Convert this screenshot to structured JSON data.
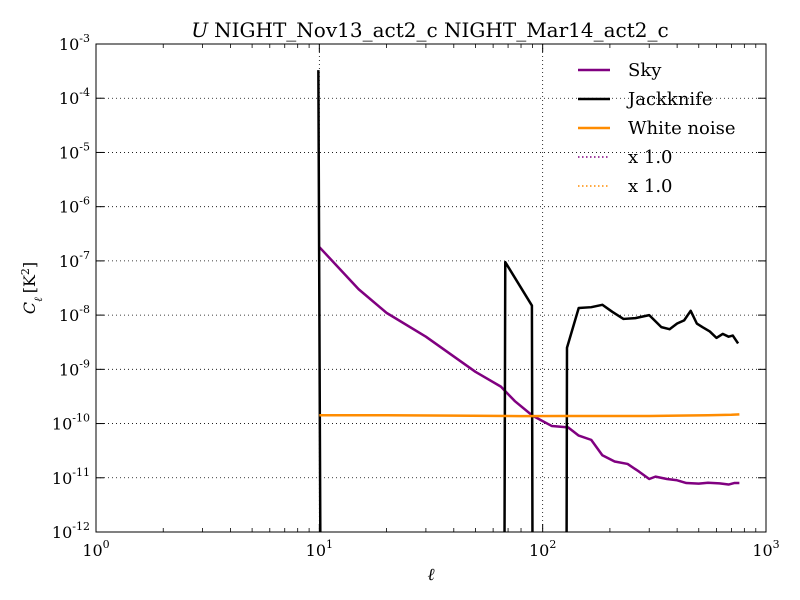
{
  "chart_data": {
    "type": "line",
    "title_symbol": "U",
    "title_text": "NIGHT_Nov13_act2_c NIGHT_Mar14_act2_c",
    "xlabel": "ℓ",
    "ylabel_main": "C",
    "ylabel_sub": "ℓ",
    "ylabel_unit_open": "[K",
    "ylabel_unit_sup": "2",
    "ylabel_unit_close": "]",
    "xscale": "log",
    "yscale": "log",
    "xlim": [
      1,
      1000
    ],
    "ylim": [
      1e-12,
      0.001
    ],
    "x_tick_base": "10",
    "x_ticks": [
      {
        "value": 1,
        "exp": "0"
      },
      {
        "value": 10,
        "exp": "1"
      },
      {
        "value": 100,
        "exp": "2"
      },
      {
        "value": 1000,
        "exp": "3"
      }
    ],
    "y_tick_base": "10",
    "y_ticks": [
      {
        "value": 1e-12,
        "exp": "-12"
      },
      {
        "value": 1e-11,
        "exp": "-11"
      },
      {
        "value": 1e-10,
        "exp": "-10"
      },
      {
        "value": 1e-09,
        "exp": "-9"
      },
      {
        "value": 1e-08,
        "exp": "-8"
      },
      {
        "value": 1e-07,
        "exp": "-7"
      },
      {
        "value": 1e-06,
        "exp": "-6"
      },
      {
        "value": 1e-05,
        "exp": "-5"
      },
      {
        "value": 0.0001,
        "exp": "-4"
      },
      {
        "value": 0.001,
        "exp": "-3"
      }
    ],
    "grid": true,
    "legend_position": "top-right",
    "legend": [
      {
        "label": "Sky",
        "color": "#800080",
        "style": "solid"
      },
      {
        "label": "Jackknife",
        "color": "#000000",
        "style": "solid"
      },
      {
        "label": "White noise",
        "color": "#ff8c00",
        "style": "solid"
      },
      {
        "label": "x 1.0",
        "color": "#800080",
        "style": "dotted"
      },
      {
        "label": "x 1.0",
        "color": "#ff8c00",
        "style": "dotted"
      }
    ],
    "series": [
      {
        "name": "Sky",
        "color": "#800080",
        "points": [
          [
            10,
            1.8e-07
          ],
          [
            15,
            3e-08
          ],
          [
            20,
            1.1e-08
          ],
          [
            30,
            4e-09
          ],
          [
            50,
            9e-10
          ],
          [
            65,
            4.8e-10
          ],
          [
            75,
            2.6e-10
          ],
          [
            90,
            1.4e-10
          ],
          [
            110,
            9e-11
          ],
          [
            130,
            8.5e-11
          ],
          [
            145,
            6e-11
          ],
          [
            165,
            5e-11
          ],
          [
            185,
            2.6e-11
          ],
          [
            210,
            2e-11
          ],
          [
            240,
            1.8e-11
          ],
          [
            270,
            1.3e-11
          ],
          [
            300,
            9.5e-12
          ],
          [
            320,
            1.05e-11
          ],
          [
            360,
            9.5e-12
          ],
          [
            400,
            9e-12
          ],
          [
            440,
            8e-12
          ],
          [
            500,
            7.8e-12
          ],
          [
            550,
            8.1e-12
          ],
          [
            620,
            7.9e-12
          ],
          [
            680,
            7.5e-12
          ],
          [
            720,
            8e-12
          ],
          [
            760,
            8e-12
          ]
        ]
      },
      {
        "name": "Jackknife",
        "color": "#000000",
        "points": [
          [
            9.9,
            0.00033
          ],
          [
            10.1,
            1e-12
          ],
          [
            null,
            null
          ],
          [
            67.5,
            1e-12
          ],
          [
            68,
            9.5e-08
          ],
          [
            89.5,
            1.5e-08
          ],
          [
            90,
            1e-12
          ],
          [
            null,
            null
          ],
          [
            128,
            1e-12
          ],
          [
            128.5,
            2.5e-09
          ],
          [
            145,
            1.35e-08
          ],
          [
            165,
            1.4e-08
          ],
          [
            185,
            1.55e-08
          ],
          [
            205,
            1.15e-08
          ],
          [
            230,
            8.5e-09
          ],
          [
            260,
            8.8e-09
          ],
          [
            300,
            1e-08
          ],
          [
            340,
            6e-09
          ],
          [
            370,
            5.5e-09
          ],
          [
            400,
            7e-09
          ],
          [
            430,
            8e-09
          ],
          [
            460,
            1.2e-08
          ],
          [
            490,
            7e-09
          ],
          [
            520,
            6e-09
          ],
          [
            560,
            5e-09
          ],
          [
            600,
            3.8e-09
          ],
          [
            640,
            4.5e-09
          ],
          [
            680,
            4e-09
          ],
          [
            710,
            4.2e-09
          ],
          [
            750,
            3e-09
          ]
        ]
      },
      {
        "name": "White noise",
        "color": "#ff8c00",
        "points": [
          [
            10,
            1.42e-10
          ],
          [
            20,
            1.42e-10
          ],
          [
            40,
            1.4e-10
          ],
          [
            80,
            1.37e-10
          ],
          [
            120,
            1.38e-10
          ],
          [
            200,
            1.38e-10
          ],
          [
            300,
            1.38e-10
          ],
          [
            400,
            1.4e-10
          ],
          [
            550,
            1.42e-10
          ],
          [
            700,
            1.45e-10
          ],
          [
            760,
            1.48e-10
          ]
        ]
      }
    ]
  }
}
